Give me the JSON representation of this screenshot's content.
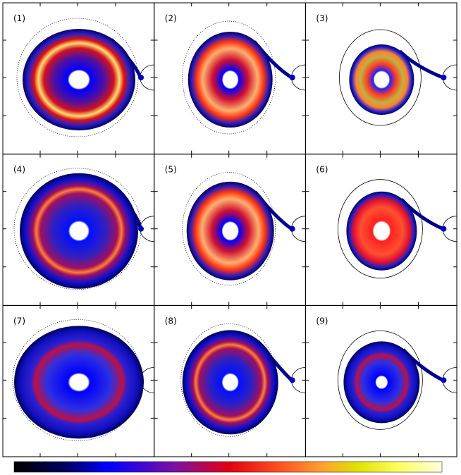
{
  "panels": [
    {
      "label": "(1)"
    },
    {
      "label": "(2)"
    },
    {
      "label": "(3)"
    },
    {
      "label": "(4)"
    },
    {
      "label": "(5)"
    },
    {
      "label": "(6)"
    },
    {
      "label": "(7)"
    },
    {
      "label": "(8)"
    },
    {
      "label": "(9)"
    }
  ]
}
